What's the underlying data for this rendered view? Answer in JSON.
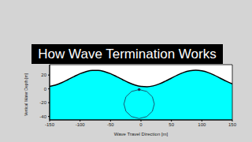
{
  "chart_data": {
    "type": "area",
    "title": "How Wave Termination Works",
    "xlabel": "Wave Travel Direction [m]",
    "ylabel": "Vertical Water Depth [m]",
    "xlim": [
      -150,
      150
    ],
    "ylim": [
      -45,
      35
    ],
    "xticks": [
      -150,
      -100,
      -50,
      0,
      50,
      100,
      150
    ],
    "yticks": [
      -40,
      -20,
      0,
      20
    ],
    "grid": false,
    "series": [
      {
        "type": "area",
        "color": "#00ffff",
        "x": [
          -150,
          -140,
          -130,
          -120,
          -110,
          -100,
          -90,
          -80,
          -70,
          -60,
          -50,
          -40,
          -30,
          -20,
          -10,
          0,
          10,
          20,
          30,
          40,
          50,
          60,
          70,
          80,
          90,
          100,
          110,
          120,
          130,
          140,
          150
        ],
        "values": [
          3.5,
          5.6,
          9,
          13.3,
          17.8,
          22,
          25.1,
          26.8,
          26.8,
          25.1,
          22,
          17.8,
          13.3,
          9,
          5.6,
          3.5,
          3.1,
          4.3,
          7.1,
          11.1,
          15.6,
          20,
          23.7,
          26.1,
          27,
          26.1,
          23.7,
          20,
          15.6,
          11.1,
          7.1
        ]
      },
      {
        "type": "line",
        "color": "#1f2f4f",
        "x": [
          22,
          18.7,
          9.5,
          -3,
          -15.5,
          -24.7,
          -28,
          -24.7,
          -15.5,
          -3,
          9.5,
          18.7,
          22
        ],
        "values": [
          -22,
          -11.5,
          -3.8,
          -1,
          -3.8,
          -11.5,
          -22,
          -32.5,
          -40.2,
          -43,
          -40.2,
          -32.5,
          -22
        ]
      },
      {
        "type": "scatter",
        "color": "#1f2f4f",
        "x": [
          -3
        ],
        "values": [
          -1
        ]
      }
    ]
  }
}
